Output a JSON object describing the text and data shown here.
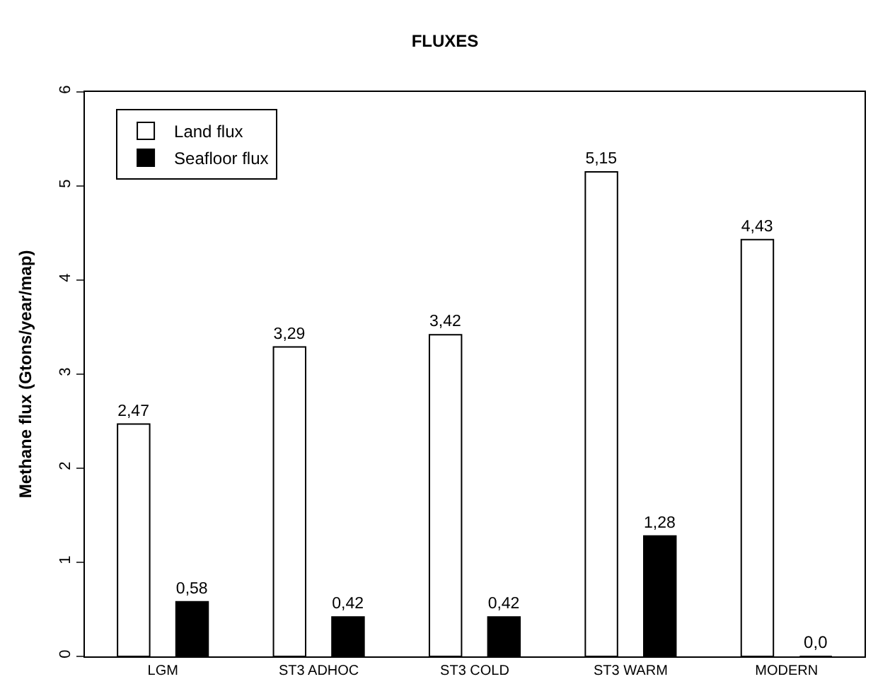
{
  "chart_data": {
    "type": "bar",
    "title": "FLUXES",
    "ylabel": "Methane flux (Gtons/year/map)",
    "categories": [
      "LGM",
      "ST3 ADHOC",
      "ST3 COLD",
      "ST3 WARM",
      "MODERN"
    ],
    "series": [
      {
        "name": "Land flux",
        "color": "#ffffff",
        "values": [
          2.47,
          3.29,
          3.42,
          5.15,
          4.43
        ],
        "value_labels": [
          "2,47",
          "3,29",
          "3,42",
          "5,15",
          "4,43"
        ]
      },
      {
        "name": "Seafloor flux",
        "color": "#000000",
        "values": [
          0.58,
          0.42,
          0.42,
          1.28,
          0.0
        ],
        "value_labels": [
          "0,58",
          "0,42",
          "0,42",
          "1,28",
          "0,0"
        ]
      }
    ],
    "ylim": [
      0,
      6
    ],
    "yticks": [
      0,
      1,
      2,
      3,
      4,
      5,
      6
    ],
    "legend": "top left"
  }
}
